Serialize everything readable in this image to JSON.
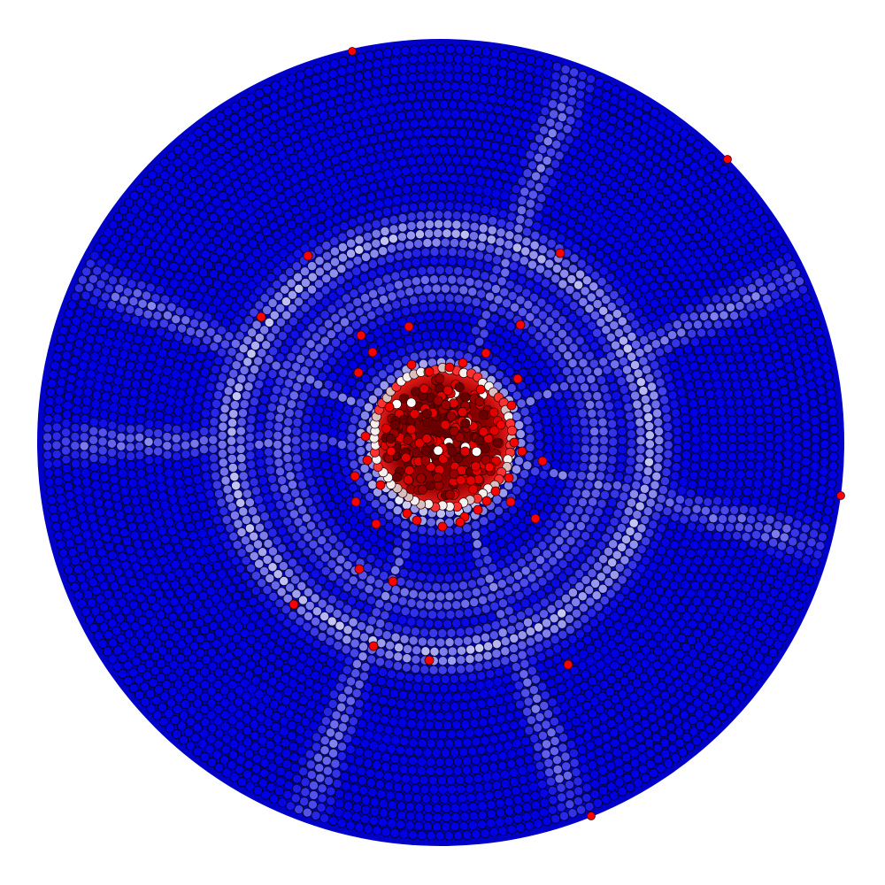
{
  "figure": {
    "kind": "polar-dot-field",
    "background": "#ffffff",
    "colors": {
      "field": "#0000e6",
      "field_dark": "#0000b4",
      "ring_highlight": "#b8b8f0",
      "ring_white": "#f0f0ff",
      "core": "#7a0000",
      "core_bright": "#ff0000",
      "scatter_point": "#ff0000",
      "outline": "#000033"
    },
    "rings": [
      {
        "name": "inner-ring",
        "radius_fraction": 0.175,
        "strength": 0.9
      },
      {
        "name": "middle-ring",
        "radius_fraction": 0.39,
        "strength": 0.45
      },
      {
        "name": "outer-ring",
        "radius_fraction": 0.52,
        "strength": 0.75
      }
    ],
    "streaks_deg": [
      -25,
      70,
      205,
      110,
      290,
      180,
      15
    ],
    "scatter_count": 46
  }
}
